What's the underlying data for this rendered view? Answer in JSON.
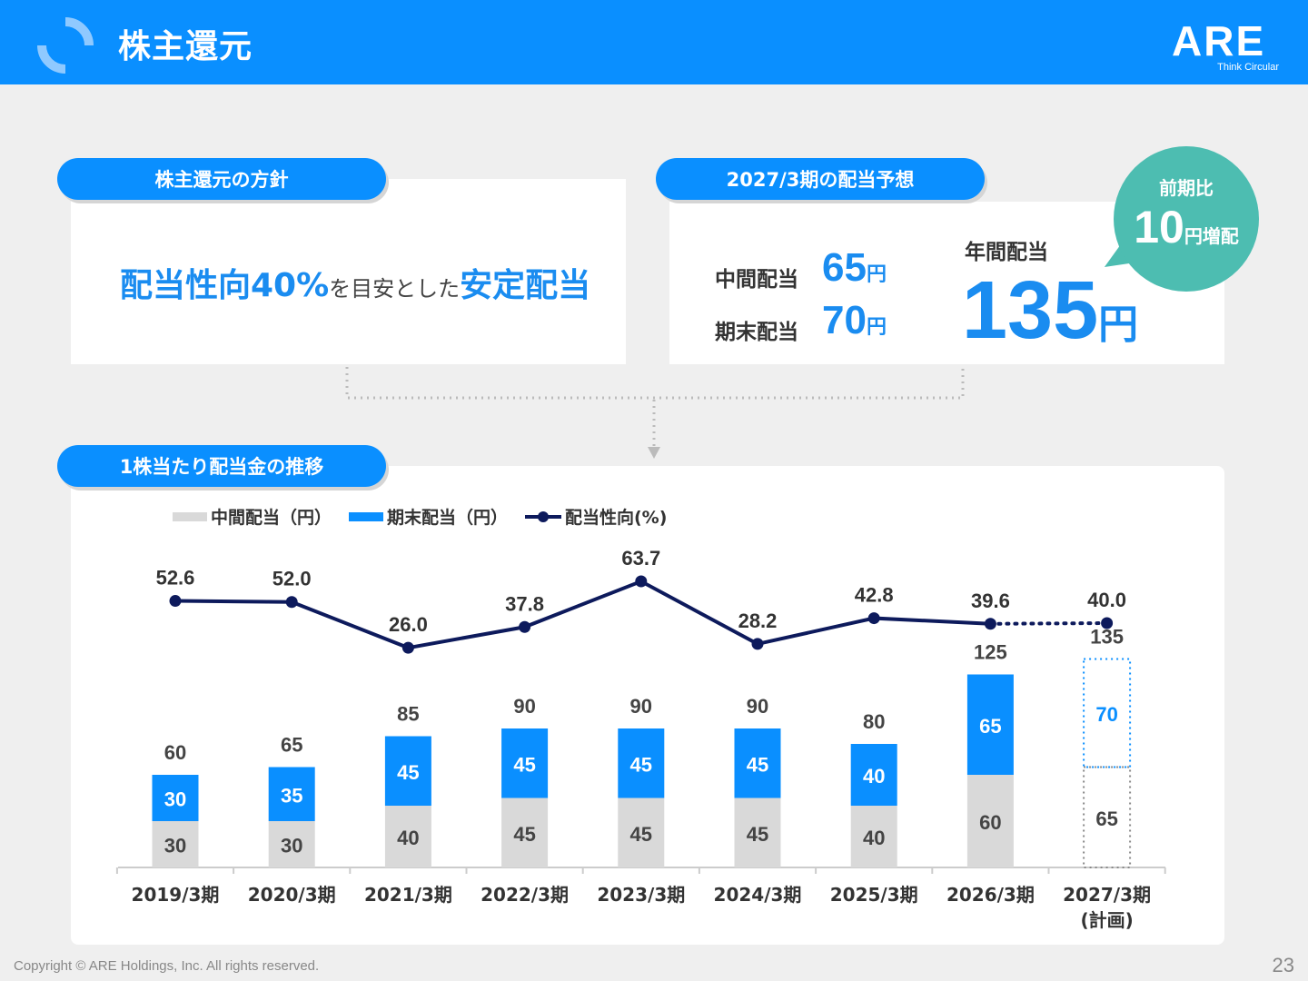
{
  "header": {
    "title": "株主還元",
    "brand": "ARE",
    "brand_tagline": "Think Circular"
  },
  "policy": {
    "pill": "株主還元の方針",
    "text_parts": [
      "配当性向40%",
      "を目安とした",
      "安定配当"
    ]
  },
  "forecast": {
    "pill": "2027/3期の配当予想",
    "interim_label": "中間配当",
    "interim_value": "65",
    "unit": "円",
    "year_end_label": "期末配当",
    "year_end_value": "70",
    "annual_label": "年間配当",
    "annual_value": "135"
  },
  "bubble": {
    "line1": "前期比",
    "value": "10",
    "suffix": "円増配"
  },
  "chart_pill": "1株当たり配当金の推移",
  "chart_data": {
    "type": "bar",
    "stacked": true,
    "categories": [
      "2019/3期",
      "2020/3期",
      "2021/3期",
      "2022/3期",
      "2023/3期",
      "2024/3期",
      "2025/3期",
      "2026/3期",
      "2027/3期\n(計画)"
    ],
    "series": [
      {
        "name": "中間配当（円）",
        "values": [
          30,
          30,
          40,
          45,
          45,
          45,
          40,
          60,
          65
        ],
        "color": "#d9d9d9"
      },
      {
        "name": "期末配当（円）",
        "values": [
          30,
          35,
          45,
          45,
          45,
          45,
          40,
          65,
          70
        ],
        "color": "#0a8fff"
      },
      {
        "name": "配当性向(%)",
        "type": "line",
        "values": [
          52.6,
          52.0,
          26.0,
          37.8,
          63.7,
          28.2,
          42.8,
          39.6,
          40.0
        ],
        "labels": [
          "52.6",
          "52.0",
          "26.0",
          "37.8",
          "63.7",
          "28.2",
          "42.8",
          "39.6",
          "40.0"
        ],
        "color": "#0d1a5c"
      }
    ],
    "totals": [
      60,
      65,
      85,
      90,
      90,
      90,
      80,
      125,
      135
    ],
    "plan_category_index": 8,
    "legend_position": "top-left"
  },
  "footer": {
    "copyright": "Copyright © ARE Holdings, Inc. All rights reserved.",
    "page": "23"
  }
}
